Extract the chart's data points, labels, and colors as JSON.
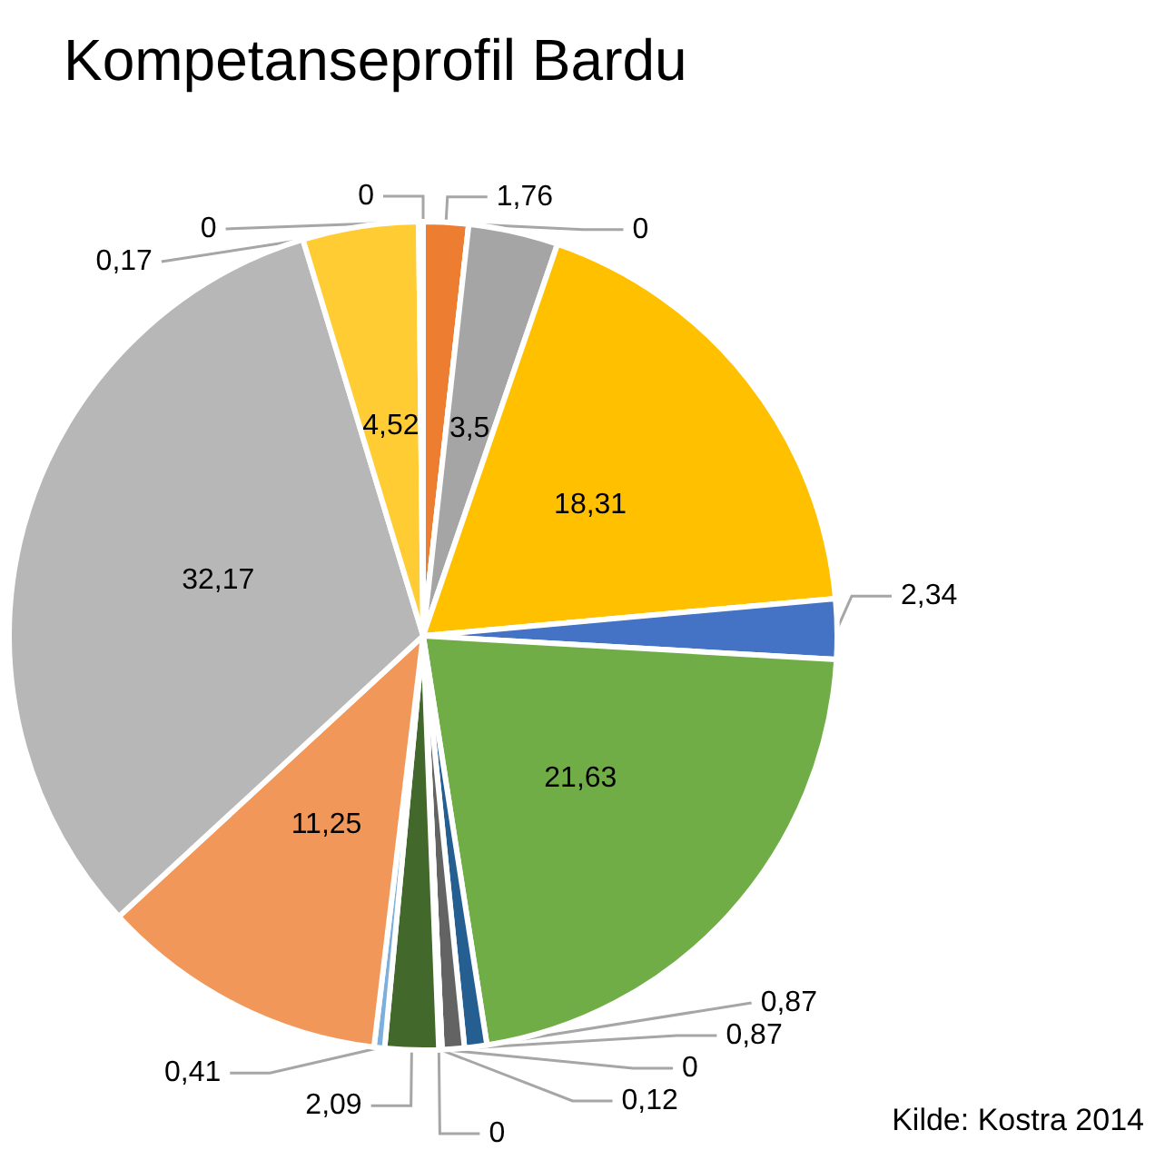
{
  "chart_data": {
    "type": "pie",
    "title": "Kompetanseprofil Bardu",
    "categories": [
      null,
      null,
      null,
      null,
      null,
      null,
      null,
      null,
      null,
      null,
      null,
      null,
      null,
      null,
      null,
      null,
      null,
      null,
      null
    ],
    "values": [
      1.76,
      0,
      3.5,
      18.31,
      2.34,
      21.63,
      0.87,
      0.87,
      0,
      0.12,
      0,
      2.09,
      0.41,
      11.25,
      32.17,
      4.52,
      0.17,
      0,
      0
    ],
    "colors": [
      "#ed7d31",
      "#a5a5a5",
      "#a5a5a5",
      "#ffc000",
      "#4472c4",
      "#70ad47",
      "#255e91",
      "#636363",
      "#997300",
      "#9e480e",
      "#264478",
      "#43682b",
      "#7cafdd",
      "#f1975a",
      "#b7b7b7",
      "#ffcd33",
      "#698ed0",
      "#8cc168",
      "#5b9bd5"
    ],
    "value_labels": [
      "1,76",
      "0",
      "3,5",
      "18,31",
      "2,34",
      "21,63",
      "0,87",
      "0,87",
      "0",
      "0,12",
      "0",
      "2,09",
      "0,41",
      "11,25",
      "32,17",
      "4,52",
      "0,17",
      "0",
      "0"
    ],
    "legend": false,
    "annotations": [
      "Kilde: Kostra 2014"
    ]
  }
}
